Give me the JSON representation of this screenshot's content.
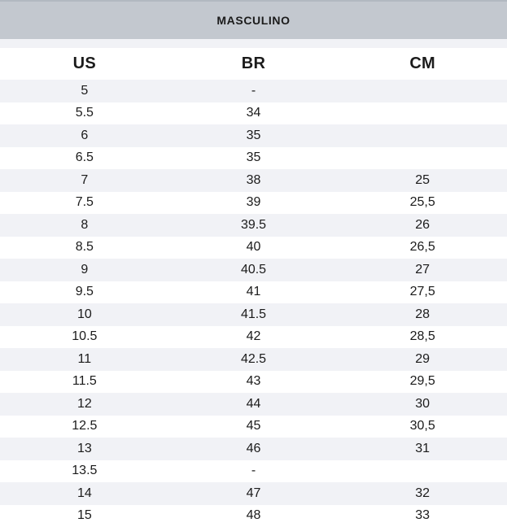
{
  "title": "MASCULINO",
  "table": {
    "columns": [
      "US",
      "BR",
      "CM"
    ],
    "column_keys": [
      "us",
      "br",
      "cm"
    ],
    "rows": [
      [
        "5",
        "-",
        ""
      ],
      [
        "5.5",
        "34",
        ""
      ],
      [
        "6",
        "35",
        ""
      ],
      [
        "6.5",
        "35",
        ""
      ],
      [
        "7",
        "38",
        "25"
      ],
      [
        "7.5",
        "39",
        "25,5"
      ],
      [
        "8",
        "39.5",
        "26"
      ],
      [
        "8.5",
        "40",
        "26,5"
      ],
      [
        "9",
        "40.5",
        "27"
      ],
      [
        "9.5",
        "41",
        "27,5"
      ],
      [
        "10",
        "41.5",
        "28"
      ],
      [
        "10.5",
        "42",
        "28,5"
      ],
      [
        "11",
        "42.5",
        "29"
      ],
      [
        "11.5",
        "43",
        "29,5"
      ],
      [
        "12",
        "44",
        "30"
      ],
      [
        "12.5",
        "45",
        "30,5"
      ],
      [
        "13",
        "46",
        "31"
      ],
      [
        "13.5",
        "-",
        ""
      ],
      [
        "14",
        "47",
        "32"
      ],
      [
        "15",
        "48",
        "33"
      ]
    ]
  },
  "colors": {
    "header_band": "#c3c8cf",
    "header_band_border": "#b2b9c1",
    "row_alternate": "#f1f2f6",
    "row_base": "#ffffff",
    "text": "#1b1b1b"
  }
}
